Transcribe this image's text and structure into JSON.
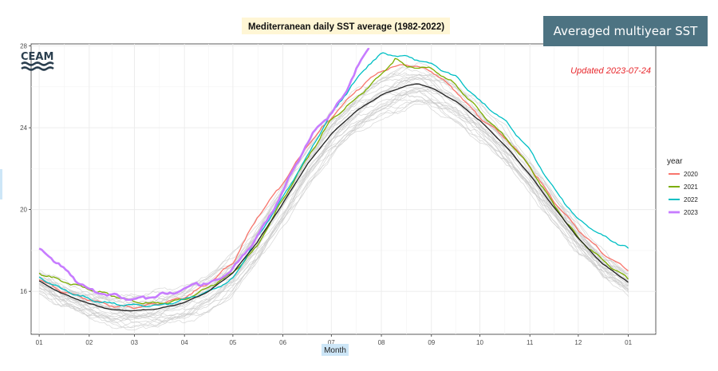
{
  "badge": "Averaged multiyear SST",
  "logo_text": "CEAM",
  "updated": "Updated 2023-07-24",
  "colors": {
    "panel_bg": "#ffffff",
    "grid": "#ebebeb",
    "border": "#333333",
    "title_bg": "#fff6d5",
    "xlabel_bg": "#cde6f7",
    "badge_bg": "#4d7382",
    "updated": "#e8282d",
    "history": "#c8c8c8",
    "average": "#222222",
    "logo": "#2b3f4f"
  },
  "chart_data": {
    "type": "line",
    "title": "Mediterranean daily SST average (1982-2022)",
    "xlabel": "Month",
    "ylabel": "",
    "x_ticks": [
      "01",
      "02",
      "03",
      "04",
      "05",
      "06",
      "07",
      "08",
      "09",
      "10",
      "11",
      "12",
      "01"
    ],
    "x_tick_days": [
      1,
      32,
      60,
      91,
      121,
      152,
      182,
      213,
      244,
      274,
      305,
      335,
      366
    ],
    "xlim": [
      -4,
      383
    ],
    "y_ticks": [
      16,
      20,
      24,
      28
    ],
    "ylim": [
      13.9,
      28.1
    ],
    "legend_title": "year",
    "legend_position": "right",
    "historical_range": "1982-2022",
    "average": {
      "name": "1982-2022 average",
      "day": [
        1,
        15,
        32,
        46,
        60,
        75,
        91,
        106,
        121,
        136,
        152,
        167,
        182,
        197,
        213,
        228,
        236,
        244,
        259,
        274,
        290,
        305,
        320,
        335,
        350,
        366
      ],
      "sst": [
        16.5,
        15.9,
        15.4,
        15.1,
        15.05,
        15.15,
        15.45,
        16.0,
        16.9,
        18.4,
        20.3,
        22.2,
        23.7,
        24.8,
        25.6,
        26.05,
        26.15,
        25.95,
        25.3,
        24.35,
        23.1,
        21.7,
        20.1,
        18.6,
        17.35,
        16.45
      ]
    },
    "series": [
      {
        "name": "2020",
        "color": "#f8766d",
        "day": [
          1,
          15,
          32,
          46,
          60,
          75,
          91,
          106,
          121,
          136,
          152,
          167,
          182,
          197,
          213,
          228,
          244,
          259,
          274,
          290,
          305,
          320,
          335,
          350,
          366
        ],
        "sst": [
          16.6,
          16.0,
          15.6,
          15.3,
          15.2,
          15.4,
          15.7,
          16.4,
          17.4,
          19.6,
          21.3,
          23.1,
          24.5,
          25.8,
          26.8,
          27.1,
          26.8,
          25.8,
          24.5,
          23.5,
          22.1,
          20.4,
          19.0,
          17.9,
          17.0
        ]
      },
      {
        "name": "2021",
        "color": "#7cae00",
        "day": [
          1,
          15,
          32,
          46,
          60,
          75,
          91,
          106,
          121,
          136,
          152,
          167,
          182,
          197,
          213,
          222,
          228,
          244,
          259,
          274,
          290,
          305,
          320,
          335,
          350,
          366
        ],
        "sst": [
          16.9,
          16.5,
          16.1,
          15.8,
          15.5,
          15.4,
          15.6,
          16.2,
          16.9,
          18.2,
          20.5,
          22.5,
          24.4,
          25.4,
          26.6,
          27.4,
          27.0,
          26.9,
          26.1,
          24.8,
          23.5,
          22.1,
          20.2,
          18.6,
          17.5,
          16.6
        ]
      },
      {
        "name": "2022",
        "color": "#00bfc4",
        "day": [
          1,
          15,
          32,
          46,
          60,
          75,
          91,
          106,
          121,
          136,
          152,
          167,
          182,
          197,
          205,
          213,
          228,
          244,
          259,
          274,
          290,
          305,
          320,
          335,
          350,
          366
        ],
        "sst": [
          16.7,
          16.1,
          15.6,
          15.4,
          15.3,
          15.3,
          15.6,
          16.0,
          16.6,
          18.6,
          20.6,
          22.6,
          24.7,
          26.3,
          27.1,
          27.6,
          27.5,
          27.1,
          26.5,
          25.3,
          24.3,
          22.9,
          21.0,
          19.5,
          18.7,
          18.1
        ]
      },
      {
        "name": "2023",
        "color": "#c77cff",
        "day": [
          1,
          8,
          15,
          22,
          32,
          40,
          46,
          53,
          60,
          68,
          75,
          82,
          91,
          98,
          106,
          113,
          121,
          128,
          136,
          144,
          152,
          160,
          167,
          174,
          182,
          190,
          197,
          205
        ],
        "sst": [
          18.05,
          17.7,
          17.2,
          16.7,
          16.05,
          15.9,
          15.8,
          15.7,
          15.6,
          15.7,
          15.8,
          15.9,
          16.1,
          16.4,
          16.4,
          16.6,
          17.1,
          17.8,
          18.7,
          19.7,
          20.9,
          22.2,
          23.2,
          24.1,
          24.7,
          25.6,
          26.8,
          27.9
        ]
      }
    ]
  }
}
